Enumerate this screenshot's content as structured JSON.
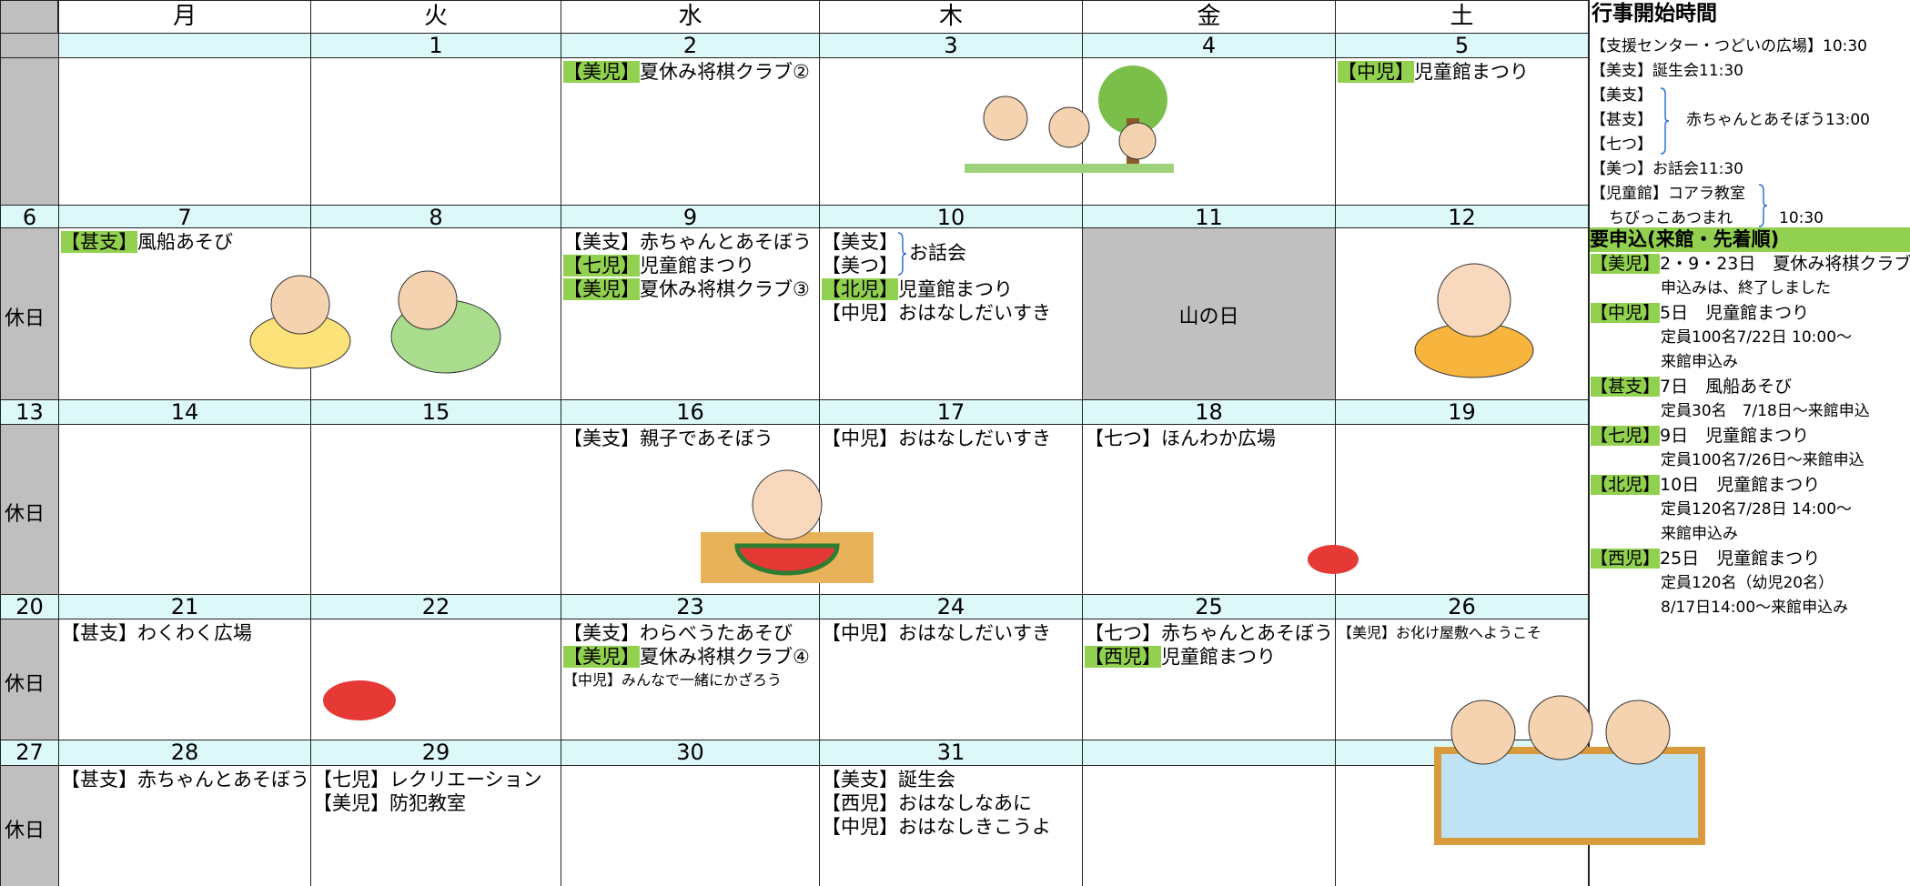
{
  "header": {
    "days": [
      "月",
      "火",
      "水",
      "木",
      "金",
      "土"
    ]
  },
  "weeks": [
    {
      "sunday": {
        "date": null,
        "label": null
      },
      "days": [
        {
          "date": null,
          "events": []
        },
        {
          "date": "1",
          "events": []
        },
        {
          "date": "2",
          "events": [
            {
              "tag": "【美児】",
              "hl": true,
              "text": "夏休み将棋クラブ②"
            }
          ]
        },
        {
          "date": "3",
          "events": []
        },
        {
          "date": "4",
          "events": []
        },
        {
          "date": "5",
          "events": [
            {
              "tag": "【中児】",
              "hl": true,
              "text": "児童館まつり"
            }
          ]
        }
      ]
    },
    {
      "sunday": {
        "date": "6",
        "label": "休日"
      },
      "days": [
        {
          "date": "7",
          "events": [
            {
              "tag": "【甚支】",
              "hl": true,
              "text": "風船あそび"
            }
          ]
        },
        {
          "date": "8",
          "events": []
        },
        {
          "date": "9",
          "events": [
            {
              "tag": "【美支】",
              "text": "赤ちゃんとあそぼう"
            },
            {
              "tag": "【七児】",
              "hl": true,
              "text": "児童館まつり"
            },
            {
              "tag": "【美児】",
              "hl": true,
              "text": "夏休み将棋クラブ③"
            }
          ]
        },
        {
          "date": "10",
          "events": [
            {
              "tags": [
                "【美支】",
                "【美つ】"
              ],
              "text": "お話会"
            },
            {
              "tag": "【北児】",
              "hl": true,
              "text": "児童館まつり"
            },
            {
              "tag": "【中児】",
              "text": "おはなしだいすき"
            }
          ]
        },
        {
          "date": "11",
          "holiday": "山の日",
          "events": []
        },
        {
          "date": "12",
          "events": []
        }
      ]
    },
    {
      "sunday": {
        "date": "13",
        "label": "休日"
      },
      "days": [
        {
          "date": "14",
          "events": []
        },
        {
          "date": "15",
          "events": []
        },
        {
          "date": "16",
          "events": [
            {
              "tag": "【美支】",
              "text": "親子であそぼう"
            }
          ]
        },
        {
          "date": "17",
          "events": [
            {
              "tag": "【中児】",
              "text": "おはなしだいすき"
            }
          ]
        },
        {
          "date": "18",
          "events": [
            {
              "tag": "【七つ】",
              "text": "ほんわか広場"
            }
          ]
        },
        {
          "date": "19",
          "events": []
        }
      ]
    },
    {
      "sunday": {
        "date": "20",
        "label": "休日"
      },
      "days": [
        {
          "date": "21",
          "events": [
            {
              "tag": "【甚支】",
              "text": "わくわく広場"
            }
          ]
        },
        {
          "date": "22",
          "events": []
        },
        {
          "date": "23",
          "events": [
            {
              "tag": "【美支】",
              "text": "わらべうたあそび"
            },
            {
              "tag": "【美児】",
              "hl": true,
              "text": "夏休み将棋クラブ④"
            },
            {
              "tag": "【中児】",
              "text": "みんなで一緒にかざろう",
              "small": true
            }
          ]
        },
        {
          "date": "24",
          "events": [
            {
              "tag": "【中児】",
              "text": "おはなしだいすき"
            }
          ]
        },
        {
          "date": "25",
          "events": [
            {
              "tag": "【七つ】",
              "text": "赤ちゃんとあそぼう"
            },
            {
              "tag": "【西児】",
              "hl": true,
              "text": "児童館まつり"
            }
          ]
        },
        {
          "date": "26",
          "events": [
            {
              "tag": "【美児】",
              "text": "お化け屋敷へようこそ",
              "small": true
            }
          ]
        }
      ]
    },
    {
      "sunday": {
        "date": "27",
        "label": "休日"
      },
      "days": [
        {
          "date": "28",
          "events": [
            {
              "tag": "【甚支】",
              "text": "赤ちゃんとあそぼう"
            }
          ]
        },
        {
          "date": "29",
          "events": [
            {
              "tag": "【七児】",
              "text": "レクリエーション"
            },
            {
              "tag": "【美児】",
              "text": "防犯教室"
            }
          ]
        },
        {
          "date": "30",
          "events": []
        },
        {
          "date": "31",
          "events": [
            {
              "tag": "【美支】",
              "text": "誕生会"
            },
            {
              "tag": "【西児】",
              "text": "おはなしなあに"
            },
            {
              "tag": "【中児】",
              "text": "おはなしきこうよ"
            }
          ]
        },
        {
          "date": null,
          "events": []
        },
        {
          "date": null,
          "events": []
        }
      ]
    }
  ],
  "times": {
    "title": "行事開始時間",
    "lines": [
      "【支援センター・つどいの広場】10:30",
      "【美支】誕生会11:30"
    ],
    "group1": {
      "tags": [
        "【美支】",
        "【甚支】",
        "【七つ】"
      ],
      "text": "赤ちゃんとあそぼう13:00"
    },
    "line3": "【美つ】お話会11:30",
    "group2": {
      "lines": [
        "【児童館】コアラ教室",
        "ちびっこあつまれ"
      ],
      "time": "10:30"
    }
  },
  "apply": {
    "title": "要申込(来館・先着順)",
    "items": [
      {
        "tag": "【美児】",
        "title": "2・9・23日　夏休み将棋クラブ",
        "notes": [
          "申込みは、終了しました"
        ]
      },
      {
        "tag": "【中児】",
        "title": "5日　児童館まつり",
        "notes": [
          "定員100名7/22日 10:00～",
          "来館申込み"
        ]
      },
      {
        "tag": "【甚支】",
        "title": "7日　風船あそび",
        "notes": [
          "定員30名　7/18日～来館申込"
        ]
      },
      {
        "tag": "【七児】",
        "title": "9日　児童館まつり",
        "notes": [
          "定員100名7/26日～来館申込"
        ]
      },
      {
        "tag": "【北児】",
        "title": "10日　児童館まつり",
        "notes": [
          "定員120名7/28日 14:00～",
          "来館申込み"
        ]
      },
      {
        "tag": "【西児】",
        "title": "25日　児童館まつり",
        "notes": [
          "定員120名（幼児20名）",
          "8/17日14:00～来館申込み"
        ]
      }
    ]
  }
}
